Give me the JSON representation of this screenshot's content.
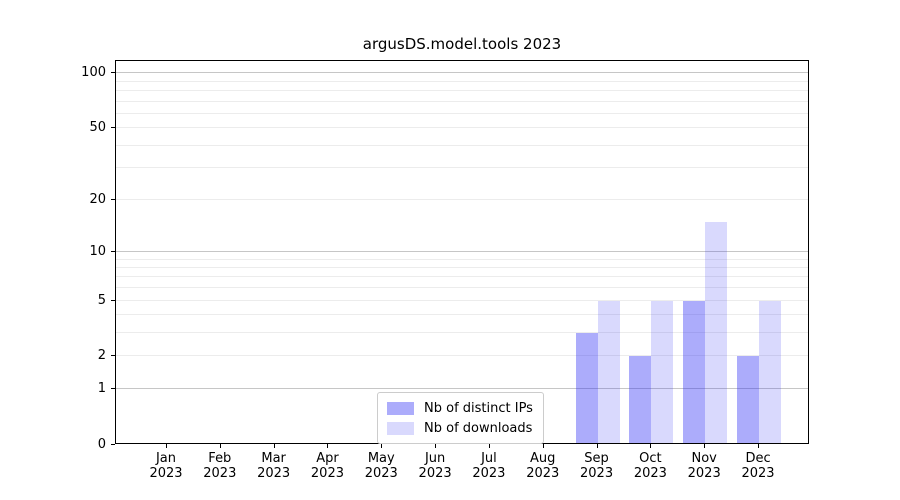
{
  "chart_data": {
    "type": "bar",
    "title": "argusDS.model.tools 2023",
    "categories": [
      "Jan",
      "Feb",
      "Mar",
      "Apr",
      "May",
      "Jun",
      "Jul",
      "Aug",
      "Sep",
      "Oct",
      "Nov",
      "Dec"
    ],
    "x_tick_year": "2023",
    "series": [
      {
        "name": "Nb of distinct IPs",
        "color": "rgba(40,40,245,0.39)",
        "values": [
          0,
          0,
          0,
          0,
          0,
          0,
          0,
          0,
          3,
          2,
          5,
          2
        ]
      },
      {
        "name": "Nb of downloads",
        "color": "rgba(40,40,245,0.175)",
        "values": [
          0,
          0,
          0,
          0,
          0,
          0,
          0,
          0,
          5,
          5,
          15,
          5
        ]
      }
    ],
    "yscale": "log1p",
    "ylabel": "",
    "xlabel": "",
    "ylim": [
      0,
      116
    ],
    "y_tick_labels": [
      0,
      1,
      2,
      5,
      10,
      20,
      50,
      100
    ],
    "y_major_gridlines": [
      1,
      10,
      100
    ],
    "y_minor_gridlines": [
      2,
      3,
      4,
      5,
      6,
      7,
      8,
      9,
      20,
      30,
      40,
      50,
      60,
      70,
      80,
      90
    ],
    "grid": "horizontal",
    "legend_position": "lower-center-inside",
    "colors": {
      "spine": "#000000",
      "grid_major": "#c6c6c6",
      "grid_minor": "#ececec",
      "legend_border": "#cccccc",
      "background": "#ffffff"
    }
  }
}
